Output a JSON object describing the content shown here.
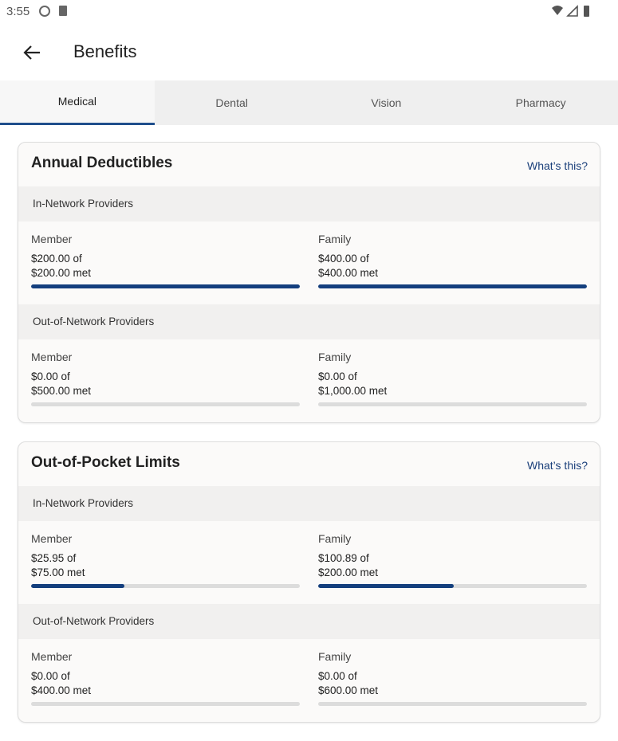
{
  "status_bar": {
    "time": "3:55"
  },
  "header": {
    "title": "Benefits"
  },
  "tabs": [
    "Medical",
    "Dental",
    "Vision",
    "Pharmacy"
  ],
  "selected_tab": 0,
  "cards": [
    {
      "title": "Annual Deductibles",
      "help_link": "What’s this?",
      "sections": [
        {
          "heading": "In-Network Providers",
          "items": [
            {
              "label": "Member",
              "spent": 200,
              "limit": 200,
              "spent_label": "$200.00 of",
              "limit_label": "$200.00 met"
            },
            {
              "label": "Family",
              "spent": 400,
              "limit": 400,
              "spent_label": "$400.00 of",
              "limit_label": "$400.00 met"
            }
          ]
        },
        {
          "heading": "Out-of-Network Providers",
          "items": [
            {
              "label": "Member",
              "spent": 0,
              "limit": 500,
              "spent_label": "$0.00 of",
              "limit_label": "$500.00 met"
            },
            {
              "label": "Family",
              "spent": 0,
              "limit": 1000,
              "spent_label": "$0.00 of",
              "limit_label": "$1,000.00 met"
            }
          ]
        }
      ]
    },
    {
      "title": "Out-of-Pocket Limits",
      "help_link": "What’s this?",
      "sections": [
        {
          "heading": "In-Network Providers",
          "items": [
            {
              "label": "Member",
              "spent": 25.95,
              "limit": 75,
              "spent_label": "$25.95 of",
              "limit_label": "$75.00 met"
            },
            {
              "label": "Family",
              "spent": 100.89,
              "limit": 200,
              "spent_label": "$100.89 of",
              "limit_label": "$200.00 met"
            }
          ]
        },
        {
          "heading": "Out-of-Network Providers",
          "items": [
            {
              "label": "Member",
              "spent": 0,
              "limit": 400,
              "spent_label": "$0.00 of",
              "limit_label": "$400.00 met"
            },
            {
              "label": "Family",
              "spent": 0,
              "limit": 600,
              "spent_label": "$0.00 of",
              "limit_label": "$600.00 met"
            }
          ]
        }
      ]
    }
  ]
}
